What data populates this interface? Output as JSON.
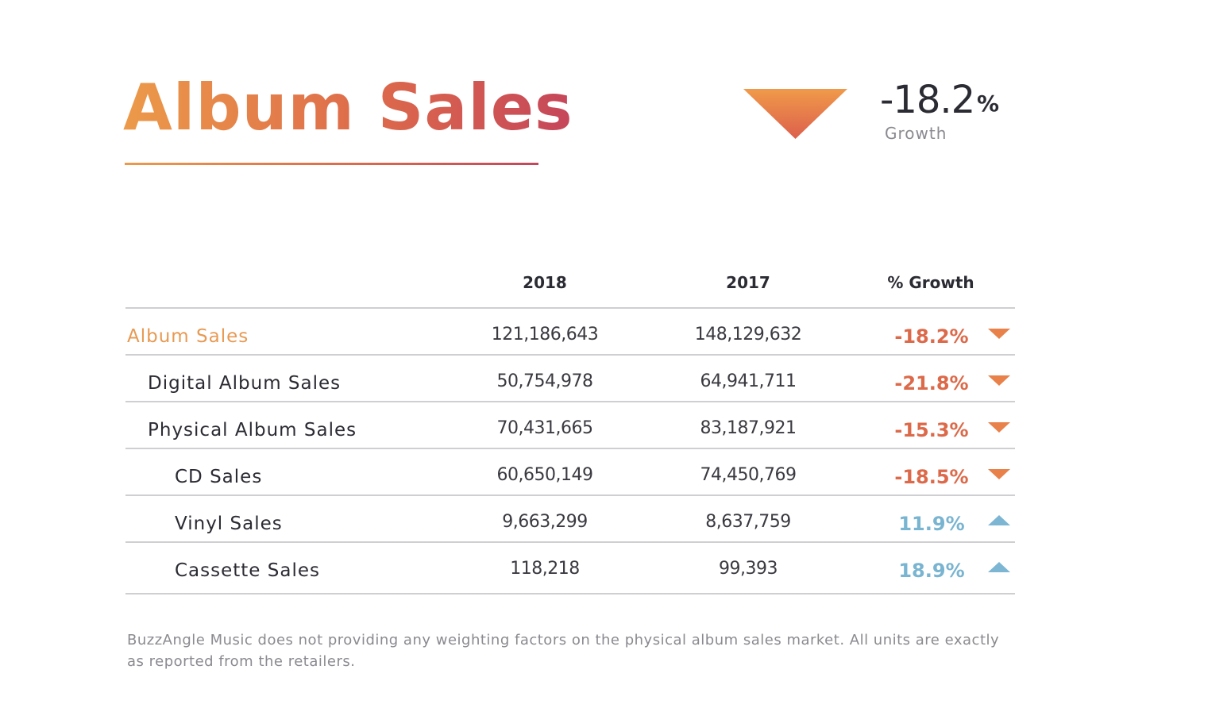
{
  "header": {
    "title": "Album Sales",
    "summary": {
      "value": "-18.2",
      "unit": "%",
      "label": "Growth",
      "direction": "down"
    }
  },
  "colors": {
    "accent_orange": "#ec9a4a",
    "accent_red": "#c5465a",
    "growth_down": "#dc6a4a",
    "growth_up": "#79b4d0",
    "arrow_down": "#e8814a",
    "arrow_up": "#7cb6d3"
  },
  "chart_data": {
    "type": "table",
    "title": "Album Sales",
    "columns": [
      "",
      "2018",
      "2017",
      "% Growth"
    ],
    "rows": [
      {
        "label": "Album Sales",
        "level": 0,
        "y2018": "121,186,643",
        "y2017": "148,129,632",
        "growth": "-18.2%",
        "direction": "down"
      },
      {
        "label": "Digital Album Sales",
        "level": 1,
        "y2018": "50,754,978",
        "y2017": "64,941,711",
        "growth": "-21.8%",
        "direction": "down"
      },
      {
        "label": "Physical Album Sales",
        "level": 1,
        "y2018": "70,431,665",
        "y2017": "83,187,921",
        "growth": "-15.3%",
        "direction": "down"
      },
      {
        "label": "CD Sales",
        "level": 2,
        "y2018": "60,650,149",
        "y2017": "74,450,769",
        "growth": "-18.5%",
        "direction": "down"
      },
      {
        "label": "Vinyl Sales",
        "level": 2,
        "y2018": "9,663,299",
        "y2017": "8,637,759",
        "growth": "11.9%",
        "direction": "up"
      },
      {
        "label": "Cassette Sales",
        "level": 2,
        "y2018": "118,218",
        "y2017": "99,393",
        "growth": "18.9%",
        "direction": "up"
      }
    ]
  },
  "footnote": "BuzzAngle Music does not providing any weighting factors on the physical album sales market. All units are exactly as reported from the retailers."
}
